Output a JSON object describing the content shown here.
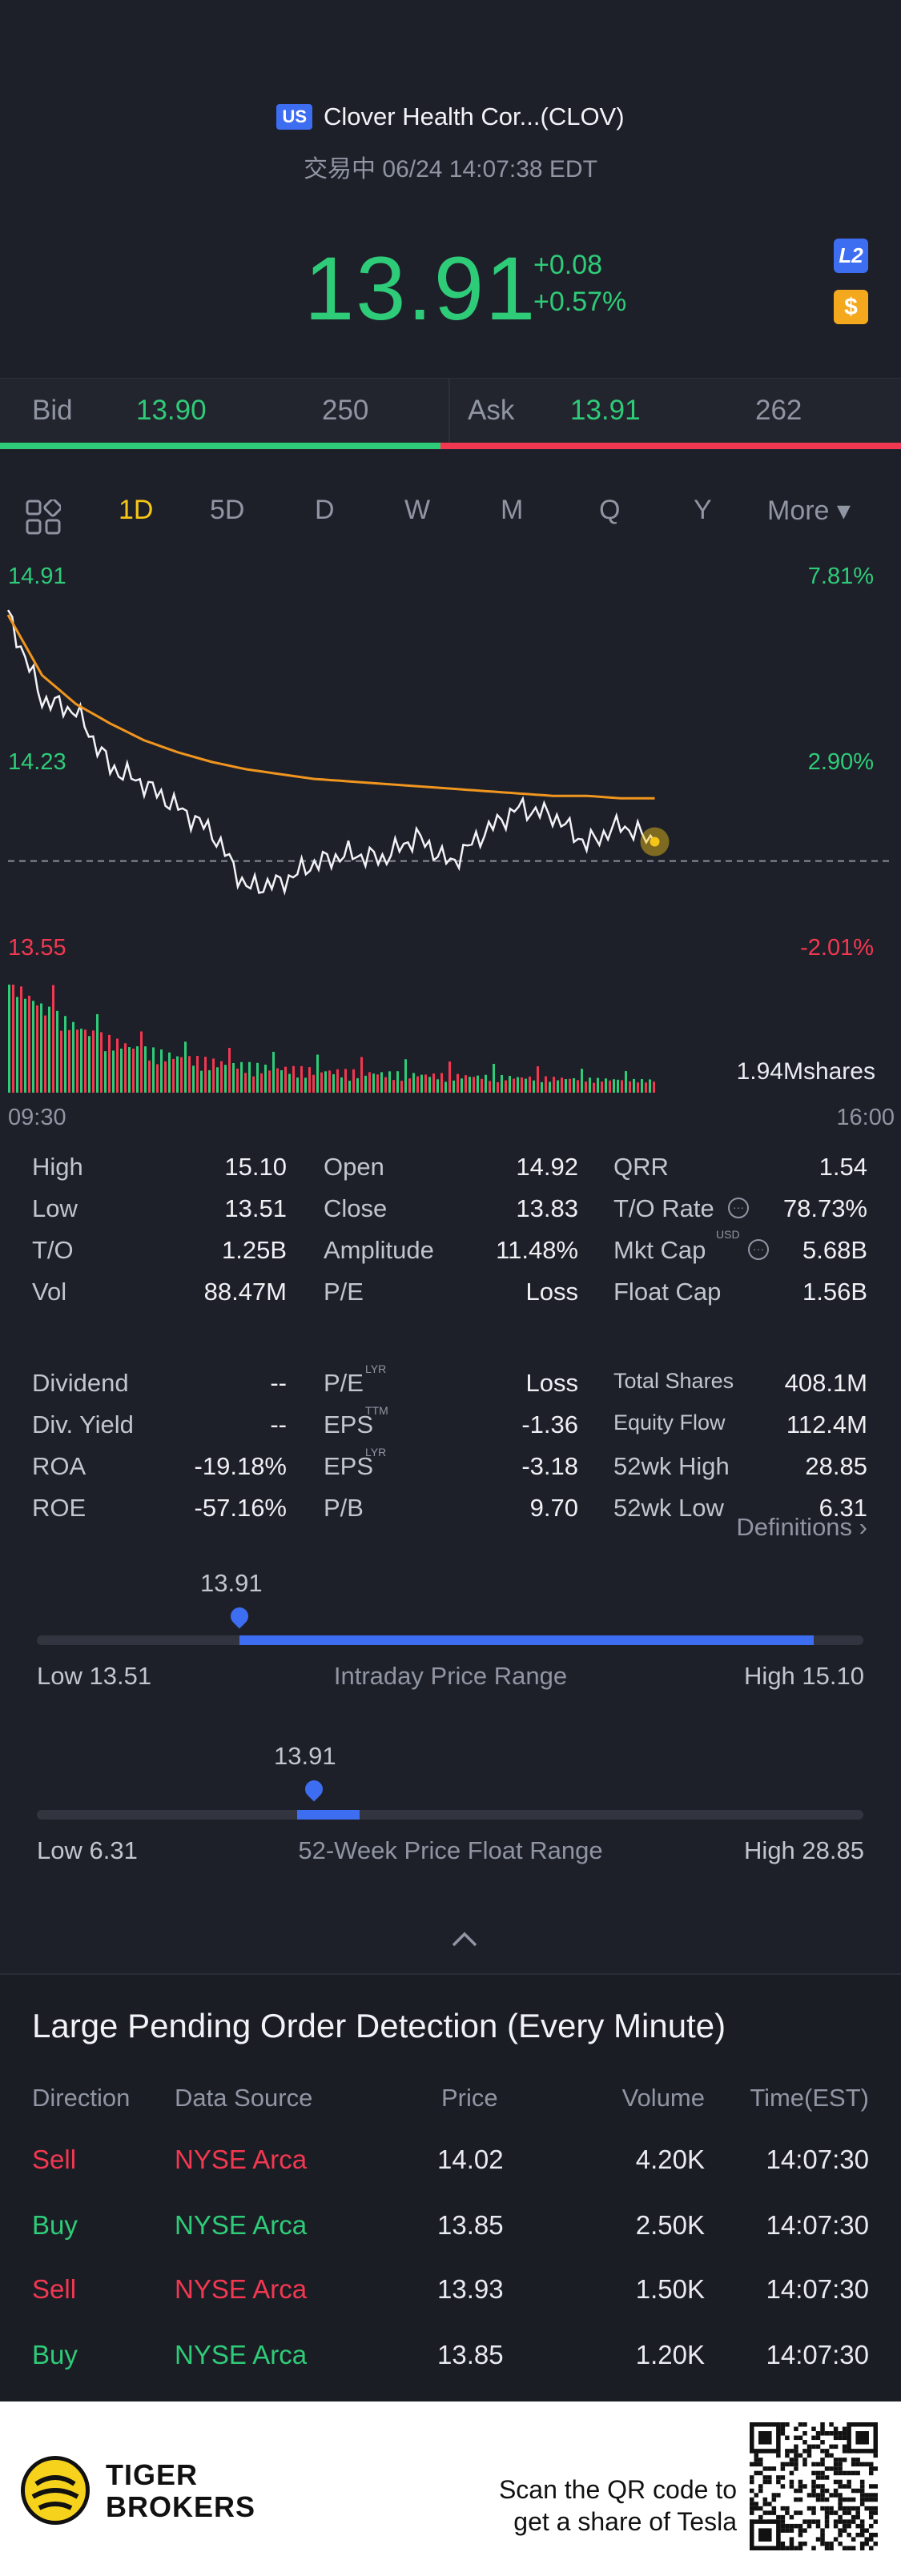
{
  "header": {
    "market_badge": "US",
    "title": "Clover Health Cor...(CLOV)",
    "status": "交易中 06/24 14:07:38 EDT",
    "price": "13.91",
    "change": "+0.08",
    "change_pct": "+0.57%",
    "l2_badge": "L2",
    "currency_badge": "$"
  },
  "bidask": {
    "bid_label": "Bid",
    "bid_price": "13.90",
    "bid_size": "250",
    "ask_label": "Ask",
    "ask_price": "13.91",
    "ask_size": "262"
  },
  "tabs": [
    "1D",
    "5D",
    "D",
    "W",
    "M",
    "Q",
    "Y",
    "More ▾"
  ],
  "chart": {
    "y_high": "14.91",
    "y_mid": "14.23",
    "y_low": "13.55",
    "pct_high": "7.81%",
    "pct_mid": "2.90%",
    "pct_low": "-2.01%",
    "volume_label": "1.94Mshares",
    "time_start": "09:30",
    "time_end": "16:00"
  },
  "chart_data": {
    "type": "line",
    "x": [
      "09:30",
      "09:45",
      "10:00",
      "10:15",
      "10:30",
      "10:45",
      "11:00",
      "11:15",
      "11:30",
      "11:45",
      "12:00",
      "12:15",
      "12:30",
      "12:45",
      "13:00",
      "13:15",
      "13:30",
      "13:45",
      "14:00",
      "14:07"
    ],
    "series": [
      {
        "values": [
          14.85,
          14.5,
          14.45,
          14.22,
          14.15,
          14.05,
          13.95,
          13.72,
          13.74,
          13.82,
          13.86,
          13.84,
          13.93,
          13.82,
          13.95,
          14.05,
          14.02,
          13.9,
          13.98,
          13.91
        ]
      },
      {
        "values": [
          14.85,
          14.6,
          14.48,
          14.4,
          14.33,
          14.28,
          14.24,
          14.21,
          14.19,
          14.17,
          14.16,
          14.15,
          14.14,
          14.13,
          14.12,
          14.11,
          14.1,
          14.1,
          14.09,
          14.09
        ]
      }
    ],
    "ylim": [
      13.55,
      14.91
    ],
    "prev_close": 13.83
  },
  "stats": {
    "col1": [
      {
        "label": "High",
        "value": "15.10"
      },
      {
        "label": "Low",
        "value": "13.51"
      },
      {
        "label": "T/O",
        "value": "1.25B"
      },
      {
        "label": "Vol",
        "value": "88.47M"
      }
    ],
    "col2": [
      {
        "label": "Open",
        "value": "14.92"
      },
      {
        "label": "Close",
        "value": "13.83"
      },
      {
        "label": "Amplitude",
        "value": "11.48%"
      },
      {
        "label": "P/E",
        "value": "Loss"
      }
    ],
    "col3": [
      {
        "label": "QRR",
        "value": "1.54"
      },
      {
        "label": "T/O Rate",
        "value": "78.73%"
      },
      {
        "label": "Mkt Cap",
        "value": "5.68B"
      },
      {
        "label": "Float Cap",
        "value": "1.56B"
      }
    ],
    "col1b": [
      {
        "label": "Dividend",
        "value": "--"
      },
      {
        "label": "Div. Yield",
        "value": "--"
      },
      {
        "label": "ROA",
        "value": "-19.18%"
      },
      {
        "label": "ROE",
        "value": "-57.16%"
      }
    ],
    "col2b": [
      {
        "label": "P/E",
        "sup": "LYR",
        "value": "Loss"
      },
      {
        "label": "EPS",
        "sup": "TTM",
        "value": "-1.36"
      },
      {
        "label": "EPS",
        "sup": "LYR",
        "value": "-3.18"
      },
      {
        "label": "P/B",
        "value": "9.70"
      }
    ],
    "col3b": [
      {
        "label": "Total Shares",
        "value": "408.1M"
      },
      {
        "label": "Equity Flow",
        "value": "112.4M"
      },
      {
        "label": "52wk High",
        "value": "28.85"
      },
      {
        "label": "52wk Low",
        "value": "6.31"
      }
    ],
    "mkt_cap_sup": "USD",
    "definitions": "Definitions ›"
  },
  "intraday_range": {
    "current": "13.91",
    "low": "Low 13.51",
    "high": "High 15.10",
    "title": "Intraday Price Range",
    "low_val": 13.51,
    "high_val": 15.1,
    "cur_val": 13.91
  },
  "week52_range": {
    "current": "13.91",
    "low": "Low 6.31",
    "high": "High 28.85",
    "title": "52-Week Price Float Range",
    "low_val": 6.31,
    "high_val": 28.85,
    "cur_val": 13.91
  },
  "collapse_icon": "chevron-up-icon",
  "pending": {
    "title": "Large Pending Order Detection (Every Minute)",
    "headers": [
      "Direction",
      "Data Source",
      "Price",
      "Volume",
      "Time(EST)"
    ],
    "rows": [
      {
        "dir": "Sell",
        "src": "NYSE Arca",
        "price": "14.02",
        "vol": "4.20K",
        "time": "14:07:30"
      },
      {
        "dir": "Buy",
        "src": "NYSE Arca",
        "price": "13.85",
        "vol": "2.50K",
        "time": "14:07:30"
      },
      {
        "dir": "Sell",
        "src": "NYSE Arca",
        "price": "13.93",
        "vol": "1.50K",
        "time": "14:07:30"
      },
      {
        "dir": "Buy",
        "src": "NYSE Arca",
        "price": "13.85",
        "vol": "1.20K",
        "time": "14:07:30"
      }
    ]
  },
  "footer": {
    "brand_line1": "TIGER",
    "brand_line2": "BROKERS",
    "scan_line1": "Scan the QR code to",
    "scan_line2": "get a share of Tesla"
  },
  "colors": {
    "up": "#2ecc78",
    "down": "#f23850",
    "accent": "#3d6df0",
    "avg": "#f0961e"
  }
}
